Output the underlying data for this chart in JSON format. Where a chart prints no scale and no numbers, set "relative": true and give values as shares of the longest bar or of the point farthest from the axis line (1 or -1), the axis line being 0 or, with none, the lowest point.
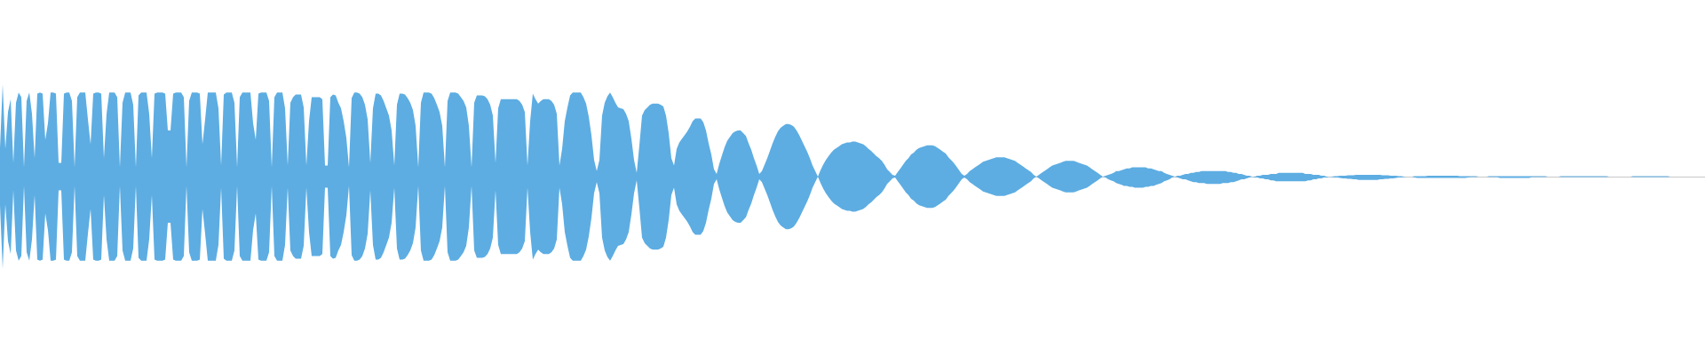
{
  "chart_data": {
    "type": "area",
    "relative": true,
    "categories": [
      null,
      null,
      null,
      null,
      null,
      null,
      null,
      null,
      null,
      null,
      null,
      null,
      null,
      null,
      null,
      null,
      null,
      null,
      null,
      null,
      null,
      null,
      null,
      null,
      null,
      null,
      null,
      null,
      null,
      null,
      null,
      null,
      null,
      null,
      null,
      null,
      null,
      null,
      null,
      null,
      null,
      null,
      null,
      null,
      null,
      null,
      null,
      null,
      null,
      null,
      null,
      null,
      null,
      null,
      null,
      null,
      null,
      null,
      null,
      null,
      null,
      null,
      null,
      null,
      null,
      null,
      null,
      null,
      null,
      null,
      null,
      null,
      null,
      null,
      null,
      null,
      null,
      null,
      null,
      null,
      null,
      null,
      null,
      null,
      null,
      null,
      null,
      null,
      null,
      null,
      null,
      null,
      null,
      null,
      null,
      null,
      null,
      null,
      null,
      null,
      null,
      null,
      null,
      null,
      null,
      null,
      null,
      null,
      null,
      null,
      null,
      null,
      null,
      null,
      null,
      null,
      null,
      null,
      null,
      null,
      null,
      null,
      null,
      null,
      null,
      null,
      null,
      null,
      null,
      null,
      null,
      null,
      null,
      null,
      null,
      null,
      null,
      null,
      null,
      null,
      null,
      null,
      null,
      null,
      null,
      null,
      null,
      null,
      null,
      null,
      null,
      null,
      null,
      null,
      null,
      null,
      null,
      null,
      null,
      null,
      null,
      null,
      null,
      null,
      null,
      null,
      null,
      null,
      null,
      null,
      null,
      null,
      null,
      null,
      null,
      null,
      null,
      null,
      null,
      null,
      null,
      null,
      null,
      null,
      null,
      null,
      null,
      null,
      null,
      null,
      null,
      null,
      null,
      null,
      null,
      null,
      null,
      null,
      null,
      null,
      null,
      null,
      null,
      null,
      null,
      null,
      null,
      null,
      null,
      null,
      null,
      null,
      null,
      null,
      null,
      null,
      null,
      null,
      null,
      null,
      null,
      null,
      null,
      null,
      null,
      null,
      null,
      null,
      null,
      null,
      null,
      null,
      null,
      null,
      null,
      null,
      null,
      null,
      null,
      null,
      null,
      null,
      null,
      null,
      null,
      null,
      null,
      null,
      null,
      null,
      null,
      null,
      null,
      null,
      null,
      null,
      null,
      null,
      null,
      null,
      null,
      null,
      null,
      null,
      null,
      null,
      null,
      null,
      null,
      null,
      null,
      null,
      null,
      null,
      null,
      null,
      null,
      null,
      null,
      null,
      null,
      null,
      null,
      null,
      null,
      null,
      null,
      null,
      null,
      null,
      null,
      null,
      null,
      null,
      null,
      null,
      null,
      null,
      null,
      null,
      null,
      null,
      null,
      null,
      null,
      null,
      null,
      null,
      null,
      null,
      null,
      null,
      null,
      null,
      null,
      null,
      null,
      null,
      null,
      null,
      null,
      null,
      null,
      null,
      null,
      null,
      null,
      null,
      null,
      null,
      null,
      null,
      null,
      null,
      null,
      null,
      null,
      null,
      null,
      null,
      null,
      null,
      null,
      null,
      null,
      null,
      null,
      null,
      null,
      null,
      null,
      null,
      null,
      null,
      null,
      null,
      null,
      null,
      null,
      null,
      null,
      null,
      null,
      null,
      null,
      null,
      null,
      null,
      null,
      null,
      null,
      null,
      null,
      null,
      null,
      null,
      null,
      null,
      null,
      null,
      null,
      null,
      null,
      null,
      null,
      null,
      null,
      null,
      null,
      null,
      null,
      null,
      null,
      null,
      null,
      null,
      null,
      null,
      null,
      null,
      null,
      null,
      null,
      null,
      null,
      null,
      null,
      null,
      null,
      null,
      null,
      null,
      null,
      null,
      null,
      null,
      null,
      null,
      null,
      null,
      null,
      null,
      null,
      null,
      null,
      null,
      null,
      null,
      null,
      null,
      null,
      null,
      null,
      null,
      null,
      null,
      null,
      null,
      null,
      null,
      null,
      null,
      null,
      null,
      null,
      null,
      null,
      null,
      null,
      null,
      null,
      null,
      null,
      null,
      null,
      null,
      null,
      null,
      null,
      null,
      null,
      null,
      null,
      null,
      null,
      null,
      null,
      null,
      null,
      null,
      null,
      null,
      null,
      null,
      null,
      null,
      null,
      null,
      null,
      null,
      null,
      null,
      null,
      null,
      null,
      null,
      null,
      null,
      null,
      null,
      null,
      null,
      null,
      null,
      null,
      null,
      null,
      null,
      null,
      null,
      null,
      null,
      null,
      null,
      null,
      null,
      null,
      null,
      null,
      null,
      null,
      null,
      null,
      null,
      null,
      null,
      null,
      null,
      null,
      null,
      null,
      null,
      null,
      null,
      null,
      null,
      null,
      null,
      null,
      null,
      null,
      null,
      null,
      null,
      null,
      null,
      null,
      null,
      null,
      null,
      null,
      null,
      null,
      null,
      null,
      null,
      null,
      null,
      null,
      null,
      null,
      null,
      null,
      null,
      null,
      null,
      null,
      null,
      null,
      null,
      null,
      null,
      null,
      null,
      null,
      null,
      null,
      null,
      null,
      null,
      null,
      null,
      null,
      null,
      null,
      null,
      null,
      null,
      null,
      null,
      null,
      null,
      null,
      null,
      null,
      null,
      null,
      null,
      null,
      null,
      null,
      null,
      null,
      null,
      null,
      null,
      null,
      null,
      null,
      null,
      null,
      null,
      null,
      null,
      null,
      null,
      null,
      null,
      null,
      null,
      null,
      null,
      null,
      null,
      null,
      null,
      null,
      null,
      null,
      null,
      null,
      null,
      null,
      null,
      null,
      null,
      null,
      null,
      null,
      null,
      null,
      null,
      null,
      null,
      null,
      null,
      null,
      null,
      null,
      null,
      null
    ],
    "series": [
      {
        "color": "#5dade2",
        "values": [
          0.31,
          1.0,
          0.3,
          0.7,
          0.84,
          0.15,
          0.8,
          0.91,
          0.86,
          0.1,
          0.82,
          0.91,
          0.68,
          0.2,
          0.9,
          0.91,
          0.9,
          0.4,
          0.58,
          0.91,
          0.91,
          0.9,
          0.15,
          0.15,
          0.9,
          0.91,
          0.91,
          0.82,
          0.1,
          0.86,
          0.91,
          0.91,
          0.91,
          0.62,
          0.35,
          0.9,
          0.91,
          0.91,
          0.9,
          0.2,
          0.68,
          0.91,
          0.91,
          0.91,
          0.86,
          0.1,
          0.8,
          0.91,
          0.91,
          0.91,
          0.78,
          0.1,
          0.88,
          0.91,
          0.91,
          0.91,
          0.68,
          0.2,
          0.9,
          0.91,
          0.91,
          0.91,
          0.9,
          0.5,
          0.5,
          0.9,
          0.91,
          0.91,
          0.91,
          0.86,
          0.1,
          0.82,
          0.91,
          0.91,
          0.91,
          0.9,
          0.35,
          0.62,
          0.91,
          0.91,
          0.91,
          0.91,
          0.74,
          0.12,
          0.89,
          0.91,
          0.91,
          0.91,
          0.8,
          0.1,
          0.86,
          0.91,
          0.91,
          0.91,
          0.91,
          0.58,
          0.4,
          0.9,
          0.91,
          0.91,
          0.91,
          0.82,
          0.1,
          0.86,
          0.91,
          0.91,
          0.91,
          0.74,
          0.12,
          0.8,
          0.86,
          0.89,
          0.89,
          0.89,
          0.75,
          0.12,
          0.6,
          0.86,
          0.86,
          0.86,
          0.86,
          0.84,
          0.12,
          0.12,
          0.86,
          0.89,
          0.88,
          0.8,
          0.74,
          0.6,
          0.42,
          0.1,
          0.85,
          0.91,
          0.91,
          0.9,
          0.86,
          0.78,
          0.62,
          0.15,
          0.74,
          0.9,
          0.9,
          0.88,
          0.82,
          0.74,
          0.66,
          0.5,
          0.12,
          0.78,
          0.9,
          0.9,
          0.89,
          0.85,
          0.8,
          0.72,
          0.55,
          0.1,
          0.8,
          0.91,
          0.91,
          0.91,
          0.9,
          0.85,
          0.78,
          0.7,
          0.55,
          0.1,
          0.82,
          0.91,
          0.91,
          0.91,
          0.9,
          0.86,
          0.82,
          0.75,
          0.55,
          0.1,
          0.8,
          0.88,
          0.88,
          0.88,
          0.87,
          0.84,
          0.78,
          0.66,
          0.15,
          0.74,
          0.84,
          0.84,
          0.84,
          0.84,
          0.84,
          0.84,
          0.84,
          0.82,
          0.78,
          0.7,
          0.12,
          0.6,
          0.9,
          0.84,
          0.79,
          0.82,
          0.84,
          0.84,
          0.84,
          0.82,
          0.78,
          0.68,
          0.12,
          0.3,
          0.6,
          0.75,
          0.88,
          0.91,
          0.91,
          0.91,
          0.91,
          0.86,
          0.79,
          0.65,
          0.45,
          0.18,
          0.06,
          0.18,
          0.66,
          0.8,
          0.87,
          0.91,
          0.86,
          0.8,
          0.75,
          0.74,
          0.73,
          0.68,
          0.6,
          0.41,
          0.18,
          0.04,
          0.34,
          0.66,
          0.72,
          0.75,
          0.78,
          0.79,
          0.79,
          0.79,
          0.78,
          0.76,
          0.66,
          0.47,
          0.2,
          0.12,
          0.3,
          0.37,
          0.41,
          0.45,
          0.49,
          0.54,
          0.6,
          0.63,
          0.63,
          0.63,
          0.59,
          0.5,
          0.36,
          0.24,
          0.08,
          0.03,
          0.14,
          0.23,
          0.32,
          0.39,
          0.43,
          0.47,
          0.49,
          0.5,
          0.5,
          0.47,
          0.44,
          0.36,
          0.29,
          0.2,
          0.12,
          0.03,
          0.06,
          0.13,
          0.2,
          0.28,
          0.36,
          0.43,
          0.49,
          0.53,
          0.55,
          0.57,
          0.57,
          0.56,
          0.54,
          0.5,
          0.45,
          0.39,
          0.33,
          0.27,
          0.2,
          0.12,
          0.06,
          0,
          0.07,
          0.13,
          0.18,
          0.22,
          0.26,
          0.29,
          0.31,
          0.33,
          0.35,
          0.36,
          0.37,
          0.37,
          0.38,
          0.38,
          0.37,
          0.36,
          0.35,
          0.33,
          0.3,
          0.28,
          0.25,
          0.22,
          0.2,
          0.17,
          0.13,
          0.08,
          0.05,
          0.02,
          0.01,
          0.05,
          0.09,
          0.13,
          0.17,
          0.2,
          0.24,
          0.26,
          0.29,
          0.31,
          0.32,
          0.33,
          0.34,
          0.34,
          0.34,
          0.33,
          0.31,
          0.29,
          0.27,
          0.25,
          0.21,
          0.18,
          0.15,
          0.11,
          0.07,
          0.03,
          0.01,
          0.03,
          0.06,
          0.08,
          0.1,
          0.12,
          0.14,
          0.16,
          0.17,
          0.18,
          0.19,
          0.2,
          0.21,
          0.21,
          0.21,
          0.21,
          0.2,
          0.19,
          0.18,
          0.17,
          0.15,
          0.13,
          0.11,
          0.09,
          0.07,
          0.05,
          0.02,
          0,
          0.02,
          0.04,
          0.06,
          0.08,
          0.1,
          0.12,
          0.13,
          0.14,
          0.15,
          0.16,
          0.17,
          0.17,
          0.17,
          0.17,
          0.16,
          0.15,
          0.14,
          0.13,
          0.12,
          0.1,
          0.08,
          0.06,
          0.04,
          0.02,
          0,
          0.01,
          0.02,
          0.03,
          0.04,
          0.06,
          0.06,
          0.07,
          0.08,
          0.09,
          0.09,
          0.1,
          0.1,
          0.1,
          0.1,
          0.1,
          0.1,
          0.09,
          0.09,
          0.08,
          0.07,
          0.06,
          0.06,
          0.04,
          0.03,
          0.02,
          0.01,
          0,
          0.01,
          0.01,
          0.02,
          0.03,
          0.03,
          0.04,
          0.04,
          0.05,
          0.05,
          0.06,
          0.06,
          0.06,
          0.06,
          0.06,
          0.06,
          0.06,
          0.06,
          0.06,
          0.06,
          0.05,
          0.05,
          0.04,
          0.04,
          0.03,
          0.03,
          0.02,
          0.01,
          0.01,
          0,
          0,
          0.01,
          0.01,
          0.02,
          0.02,
          0.02,
          0.03,
          0.03,
          0.03,
          0.04,
          0.04,
          0.04,
          0.04,
          0.04,
          0.04,
          0.04,
          0.04,
          0.04,
          0.04,
          0.03,
          0.03,
          0.03,
          0.02,
          0.02,
          0.02,
          0.01,
          0.01,
          0,
          0,
          0,
          0.005,
          0.005,
          0.01,
          0.01,
          0.01,
          0.015,
          0.015,
          0.015,
          0.02,
          0.02,
          0.02,
          0.02,
          0.02,
          0.02,
          0.02,
          0.02,
          0.02,
          0.02,
          0.015,
          0.015,
          0.015,
          0.01,
          0.01,
          0.01,
          0.005,
          0.005,
          0,
          0,
          0,
          0,
          0.005,
          0.005,
          0.005,
          0.005,
          0.005,
          0.01,
          0.01,
          0.01,
          0.01,
          0.01,
          0.01,
          0.01,
          0.01,
          0.01,
          0.01,
          0.01,
          0.01,
          0.005,
          0.005,
          0.005,
          0.005,
          0.005,
          0.005,
          0.005,
          0,
          0,
          0,
          0,
          0.005,
          0.005,
          0.005,
          0.005,
          0.005,
          0.005,
          0.005,
          0.005,
          0.005,
          0.005,
          0.005,
          0.005,
          0.005,
          0.005,
          0.005,
          0.005,
          0.005,
          0.005,
          0.005,
          0.005,
          0.005,
          0.005,
          0,
          0,
          0,
          0,
          0,
          0.005,
          0.005,
          0.005,
          0.005,
          0.005,
          0.005,
          0.005,
          0.005,
          0.005,
          0.005,
          0.005,
          0.005,
          0.005,
          0.005,
          0.005,
          0.005,
          0.005,
          0.005,
          0,
          0,
          0,
          0,
          0,
          0,
          0,
          0,
          0,
          0.005,
          0.005,
          0.005,
          0.005,
          0.005,
          0.005,
          0.005,
          0.005,
          0.005,
          0.005,
          0.005,
          0.005,
          0.005,
          0.005,
          0,
          0,
          0,
          0,
          0,
          0,
          0,
          0,
          0,
          0,
          0,
          0,
          0,
          0
        ]
      },
      {
        "color": "#5dade2",
        "values": [
          -0.31,
          -1.0,
          -0.3,
          -0.7,
          -0.84,
          -0.15,
          -0.8,
          -0.91,
          -0.86,
          -0.1,
          -0.82,
          -0.91,
          -0.68,
          -0.2,
          -0.9,
          -0.91,
          -0.9,
          -0.4,
          -0.58,
          -0.91,
          -0.91,
          -0.9,
          -0.15,
          -0.15,
          -0.9,
          -0.91,
          -0.91,
          -0.82,
          -0.1,
          -0.86,
          -0.91,
          -0.91,
          -0.91,
          -0.62,
          -0.35,
          -0.9,
          -0.91,
          -0.91,
          -0.9,
          -0.2,
          -0.68,
          -0.91,
          -0.91,
          -0.91,
          -0.86,
          -0.1,
          -0.8,
          -0.91,
          -0.91,
          -0.91,
          -0.78,
          -0.1,
          -0.88,
          -0.91,
          -0.91,
          -0.91,
          -0.68,
          -0.2,
          -0.9,
          -0.91,
          -0.91,
          -0.91,
          -0.9,
          -0.5,
          -0.5,
          -0.9,
          -0.91,
          -0.91,
          -0.91,
          -0.86,
          -0.1,
          -0.82,
          -0.91,
          -0.91,
          -0.91,
          -0.9,
          -0.35,
          -0.62,
          -0.91,
          -0.91,
          -0.91,
          -0.91,
          -0.74,
          -0.12,
          -0.89,
          -0.91,
          -0.91,
          -0.91,
          -0.8,
          -0.1,
          -0.86,
          -0.91,
          -0.91,
          -0.91,
          -0.91,
          -0.58,
          -0.4,
          -0.9,
          -0.91,
          -0.91,
          -0.91,
          -0.82,
          -0.1,
          -0.86,
          -0.91,
          -0.91,
          -0.91,
          -0.74,
          -0.12,
          -0.8,
          -0.86,
          -0.89,
          -0.89,
          -0.89,
          -0.75,
          -0.12,
          -0.6,
          -0.86,
          -0.86,
          -0.86,
          -0.86,
          -0.84,
          -0.12,
          -0.12,
          -0.86,
          -0.89,
          -0.88,
          -0.8,
          -0.74,
          -0.6,
          -0.42,
          -0.1,
          -0.85,
          -0.91,
          -0.91,
          -0.9,
          -0.86,
          -0.78,
          -0.62,
          -0.15,
          -0.74,
          -0.9,
          -0.9,
          -0.88,
          -0.82,
          -0.74,
          -0.66,
          -0.5,
          -0.12,
          -0.78,
          -0.9,
          -0.9,
          -0.89,
          -0.85,
          -0.8,
          -0.72,
          -0.55,
          -0.1,
          -0.8,
          -0.91,
          -0.91,
          -0.91,
          -0.9,
          -0.85,
          -0.78,
          -0.7,
          -0.55,
          -0.1,
          -0.82,
          -0.91,
          -0.91,
          -0.91,
          -0.9,
          -0.86,
          -0.82,
          -0.75,
          -0.55,
          -0.1,
          -0.8,
          -0.88,
          -0.88,
          -0.88,
          -0.87,
          -0.84,
          -0.78,
          -0.66,
          -0.15,
          -0.74,
          -0.84,
          -0.84,
          -0.84,
          -0.84,
          -0.84,
          -0.84,
          -0.84,
          -0.82,
          -0.78,
          -0.7,
          -0.12,
          -0.6,
          -0.9,
          -0.84,
          -0.79,
          -0.82,
          -0.84,
          -0.84,
          -0.84,
          -0.82,
          -0.78,
          -0.68,
          -0.12,
          -0.3,
          -0.6,
          -0.75,
          -0.88,
          -0.91,
          -0.91,
          -0.91,
          -0.91,
          -0.86,
          -0.79,
          -0.65,
          -0.45,
          -0.18,
          -0.06,
          -0.18,
          -0.66,
          -0.8,
          -0.87,
          -0.91,
          -0.86,
          -0.8,
          -0.75,
          -0.74,
          -0.73,
          -0.68,
          -0.6,
          -0.41,
          -0.18,
          -0.04,
          -0.34,
          -0.66,
          -0.72,
          -0.75,
          -0.78,
          -0.79,
          -0.79,
          -0.79,
          -0.78,
          -0.76,
          -0.66,
          -0.47,
          -0.2,
          -0.12,
          -0.3,
          -0.37,
          -0.41,
          -0.45,
          -0.49,
          -0.54,
          -0.6,
          -0.63,
          -0.63,
          -0.63,
          -0.59,
          -0.5,
          -0.36,
          -0.24,
          -0.08,
          -0.03,
          -0.14,
          -0.23,
          -0.32,
          -0.39,
          -0.43,
          -0.47,
          -0.49,
          -0.5,
          -0.5,
          -0.47,
          -0.44,
          -0.36,
          -0.29,
          -0.2,
          -0.12,
          -0.03,
          -0.06,
          -0.13,
          -0.2,
          -0.28,
          -0.36,
          -0.43,
          -0.49,
          -0.53,
          -0.55,
          -0.57,
          -0.57,
          -0.56,
          -0.54,
          -0.5,
          -0.45,
          -0.39,
          -0.33,
          -0.27,
          -0.2,
          -0.12,
          -0.06,
          0,
          -0.07,
          -0.13,
          -0.18,
          -0.22,
          -0.26,
          -0.29,
          -0.31,
          -0.33,
          -0.35,
          -0.36,
          -0.37,
          -0.37,
          -0.38,
          -0.38,
          -0.37,
          -0.36,
          -0.35,
          -0.33,
          -0.3,
          -0.28,
          -0.25,
          -0.22,
          -0.2,
          -0.17,
          -0.13,
          -0.08,
          -0.05,
          -0.02,
          -0.01,
          -0.05,
          -0.09,
          -0.13,
          -0.17,
          -0.2,
          -0.24,
          -0.26,
          -0.29,
          -0.31,
          -0.32,
          -0.33,
          -0.34,
          -0.34,
          -0.34,
          -0.33,
          -0.31,
          -0.29,
          -0.27,
          -0.25,
          -0.21,
          -0.18,
          -0.15,
          -0.11,
          -0.07,
          -0.03,
          -0.01,
          -0.03,
          -0.06,
          -0.08,
          -0.1,
          -0.12,
          -0.14,
          -0.16,
          -0.17,
          -0.18,
          -0.19,
          -0.2,
          -0.21,
          -0.21,
          -0.21,
          -0.21,
          -0.2,
          -0.19,
          -0.18,
          -0.17,
          -0.15,
          -0.13,
          -0.11,
          -0.09,
          -0.07,
          -0.05,
          -0.02,
          0,
          -0.02,
          -0.04,
          -0.06,
          -0.08,
          -0.1,
          -0.12,
          -0.13,
          -0.14,
          -0.15,
          -0.16,
          -0.17,
          -0.17,
          -0.17,
          -0.17,
          -0.16,
          -0.15,
          -0.14,
          -0.13,
          -0.12,
          -0.1,
          -0.08,
          -0.06,
          -0.04,
          -0.02,
          0,
          -0.01,
          -0.03,
          -0.04,
          -0.05,
          -0.07,
          -0.08,
          -0.09,
          -0.1,
          -0.1,
          -0.11,
          -0.11,
          -0.12,
          -0.12,
          -0.12,
          -0.12,
          -0.11,
          -0.11,
          -0.1,
          -0.1,
          -0.09,
          -0.08,
          -0.07,
          -0.05,
          -0.04,
          -0.03,
          -0.01,
          0,
          -0.01,
          -0.02,
          -0.03,
          -0.03,
          -0.04,
          -0.05,
          -0.06,
          -0.06,
          -0.07,
          -0.07,
          -0.07,
          -0.08,
          -0.08,
          -0.08,
          -0.08,
          -0.08,
          -0.08,
          -0.07,
          -0.07,
          -0.07,
          -0.06,
          -0.06,
          -0.05,
          -0.04,
          -0.03,
          -0.03,
          -0.02,
          -0.01,
          0,
          -0.01,
          -0.01,
          -0.02,
          -0.02,
          -0.03,
          -0.03,
          -0.04,
          -0.04,
          -0.05,
          -0.05,
          -0.05,
          -0.05,
          -0.05,
          -0.05,
          -0.05,
          -0.05,
          -0.05,
          -0.05,
          -0.05,
          -0.05,
          -0.04,
          -0.04,
          -0.03,
          -0.03,
          -0.02,
          -0.02,
          -0.01,
          -0.01,
          0,
          -0.005,
          -0.01,
          -0.01,
          -0.015,
          -0.02,
          -0.02,
          -0.025,
          -0.025,
          -0.03,
          -0.03,
          -0.035,
          -0.035,
          -0.035,
          -0.035,
          -0.035,
          -0.035,
          -0.035,
          -0.035,
          -0.03,
          -0.03,
          -0.025,
          -0.025,
          -0.02,
          -0.02,
          -0.015,
          -0.01,
          -0.01,
          -0.005,
          0,
          0,
          0,
          -0.01,
          -0.015,
          -0.015,
          -0.015,
          -0.015,
          -0.015,
          -0.015,
          -0.015,
          -0.015,
          -0.015,
          -0.015,
          -0.015,
          -0.015,
          -0.015,
          -0.015,
          -0.015,
          -0.015,
          -0.015,
          -0.015,
          -0.015,
          -0.01,
          -0.005,
          -0.005,
          -0.005,
          0,
          0,
          0,
          0,
          -0.005,
          -0.005,
          -0.005,
          -0.005,
          -0.015,
          -0.015,
          -0.015,
          -0.015,
          -0.015,
          -0.015,
          -0.015,
          -0.015,
          -0.015,
          -0.015,
          -0.015,
          -0.015,
          -0.005,
          -0.005,
          -0.005,
          -0.005,
          -0.005,
          -0.005,
          0,
          0,
          0,
          0,
          0,
          -0.005,
          -0.005,
          -0.005,
          -0.005,
          -0.005,
          -0.005,
          -0.005,
          -0.005,
          -0.005,
          -0.005,
          -0.005,
          -0.005,
          -0.005,
          -0.005,
          -0.005,
          -0.005,
          -0.005,
          -0.005,
          0,
          0,
          0,
          0,
          0,
          0,
          0,
          0,
          0,
          -0.005,
          -0.005,
          -0.005,
          -0.005,
          -0.005,
          -0.005,
          -0.005,
          -0.005,
          -0.005,
          -0.005,
          -0.005,
          -0.005,
          -0.005,
          -0.005,
          0,
          0,
          0,
          0,
          0,
          0,
          0,
          0,
          0,
          0,
          0,
          0,
          0,
          0
        ]
      }
    ]
  }
}
